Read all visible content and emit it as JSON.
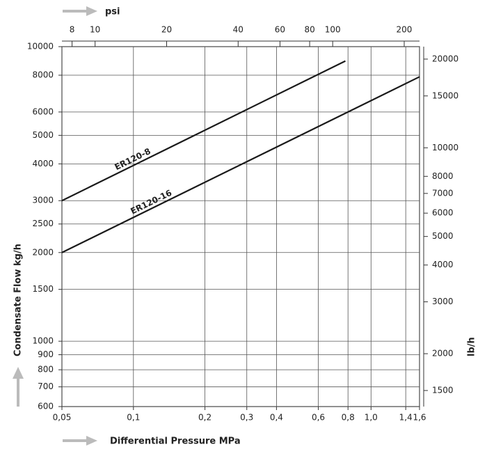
{
  "chart_data": {
    "type": "line",
    "xlabel": "Differential Pressure MPa",
    "ylabel": "Condensate Flow kg/h",
    "x2label": "psi",
    "y2label": "lb/h",
    "xscale": "log",
    "yscale": "log",
    "grid": true,
    "xlim": [
      0.05,
      1.6
    ],
    "xticks": [
      {
        "value": 0.05,
        "label": "0,05"
      },
      {
        "value": 0.1,
        "label": "0,1"
      },
      {
        "value": 0.2,
        "label": "0,2"
      },
      {
        "value": 0.3,
        "label": "0,3"
      },
      {
        "value": 0.4,
        "label": "0,4"
      },
      {
        "value": 0.6,
        "label": "0,6"
      },
      {
        "value": 0.8,
        "label": "0,8"
      },
      {
        "value": 1.0,
        "label": "1,0"
      },
      {
        "value": 1.4,
        "label": "1,4"
      },
      {
        "value": 1.6,
        "label": "1,6"
      }
    ],
    "ylim": [
      600,
      10000
    ],
    "yticks": [
      600,
      700,
      800,
      900,
      1000,
      1500,
      2000,
      2500,
      3000,
      4000,
      5000,
      6000,
      8000,
      10000
    ],
    "x2lim": [
      7.25,
      232
    ],
    "x2ticks": [
      8,
      10,
      20,
      40,
      60,
      80,
      100,
      200
    ],
    "y2lim": [
      1323,
      22046
    ],
    "y2ticks": [
      1500,
      2000,
      3000,
      4000,
      5000,
      6000,
      7000,
      8000,
      10000,
      15000,
      20000
    ],
    "series": [
      {
        "name": "ER120-8",
        "color": "#1a1a1a",
        "x": [
          0.05,
          0.78
        ],
        "values": [
          3000,
          8940
        ]
      },
      {
        "name": "ER120-16",
        "color": "#1a1a1a",
        "x": [
          0.05,
          1.6
        ],
        "values": [
          2000,
          7900
        ]
      }
    ]
  }
}
